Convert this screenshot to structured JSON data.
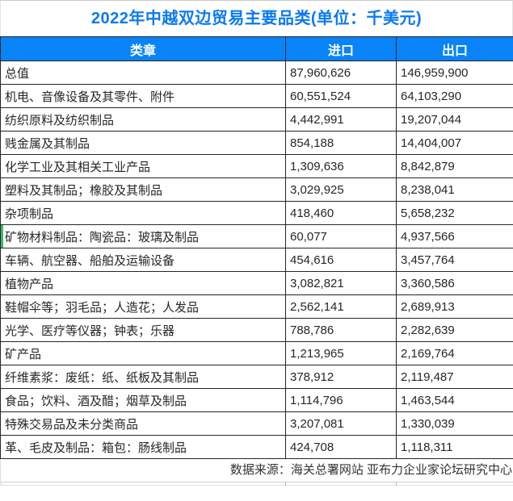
{
  "title": "2022年中越双边贸易主要品类(单位：千美元)",
  "source": "数据来源：海关总署网站 亚布力企业家论坛研究中心",
  "colors": {
    "accent": "#0884f8",
    "title-color": "#0b79f2",
    "green": "#3db56f",
    "border": "#262626"
  },
  "table": {
    "headers": [
      "类章",
      "进口",
      "出口"
    ],
    "rows": [
      {
        "category": "总值",
        "import": "87,960,626",
        "export": "146,959,900"
      },
      {
        "category": "机电、音像设备及其零件、附件",
        "import": "60,551,524",
        "export": "64,103,290"
      },
      {
        "category": "纺织原料及纺织制品",
        "import": "4,442,991",
        "export": "19,207,044"
      },
      {
        "category": "贱金属及其制品",
        "import": "854,188",
        "export": "14,404,007"
      },
      {
        "category": "化学工业及其相关工业产品",
        "import": "1,309,636",
        "export": "8,842,879"
      },
      {
        "category": "塑料及其制品；橡胶及其制品",
        "import": "3,029,925",
        "export": "8,238,041"
      },
      {
        "category": "杂项制品",
        "import": "418,460",
        "export": "5,658,232"
      },
      {
        "category": "矿物材料制品：陶瓷品：玻璃及制品",
        "import": "60,077",
        "export": "4,937,566",
        "highlight": true
      },
      {
        "category": "车辆、航空器、船舶及运输设备",
        "import": "454,616",
        "export": "3,457,764"
      },
      {
        "category": "植物产品",
        "import": "3,082,821",
        "export": "3,360,586"
      },
      {
        "category": "鞋帽伞等；羽毛品；人造花；人发品",
        "import": "2,562,141",
        "export": "2,689,913"
      },
      {
        "category": "光学、医疗等仪器；钟表；乐器",
        "import": "788,786",
        "export": "2,282,639"
      },
      {
        "category": "矿产品",
        "import": "1,213,965",
        "export": "2,169,764"
      },
      {
        "category": "纤维素浆：废纸：纸、纸板及其制品",
        "import": "378,912",
        "export": "2,119,487"
      },
      {
        "category": "食品；饮料、酒及醋；烟草及制品",
        "import": "1,114,796",
        "export": "1,463,544"
      },
      {
        "category": "特殊交易品及未分类商品",
        "import": "3,207,081",
        "export": "1,330,039"
      },
      {
        "category": "革、毛皮及制品：箱包：肠线制品",
        "import": "424,708",
        "export": "1,118,311"
      }
    ]
  },
  "chart_data": {
    "type": "table",
    "title": "2022年中越双边贸易主要品类(单位：千美元)",
    "columns": [
      "类章",
      "进口",
      "出口"
    ],
    "categories": [
      "总值",
      "机电、音像设备及其零件、附件",
      "纺织原料及纺织制品",
      "贱金属及其制品",
      "化学工业及其相关工业产品",
      "塑料及其制品；橡胶及其制品",
      "杂项制品",
      "矿物材料制品：陶瓷品：玻璃及制品",
      "车辆、航空器、船舶及运输设备",
      "植物产品",
      "鞋帽伞等；羽毛品；人造花；人发品",
      "光学、医疗等仪器；钟表；乐器",
      "矿产品",
      "纤维素浆：废纸：纸、纸板及其制品",
      "食品；饮料、酒及醋；烟草及制品",
      "特殊交易品及未分类商品",
      "革、毛皮及制品：箱包：肠线制品"
    ],
    "series": [
      {
        "name": "进口",
        "values": [
          87960626,
          60551524,
          4442991,
          854188,
          1309636,
          3029925,
          418460,
          60077,
          454616,
          3082821,
          2562141,
          788786,
          1213965,
          378912,
          1114796,
          3207081,
          424708
        ]
      },
      {
        "name": "出口",
        "values": [
          146959900,
          64103290,
          19207044,
          14404007,
          8842879,
          8238041,
          5658232,
          4937566,
          3457764,
          3360586,
          2689913,
          2282639,
          2169764,
          2119487,
          1463544,
          1330039,
          1118311
        ]
      }
    ],
    "unit": "千美元",
    "source": "数据来源：海关总署网站 亚布力企业家论坛研究中心"
  }
}
